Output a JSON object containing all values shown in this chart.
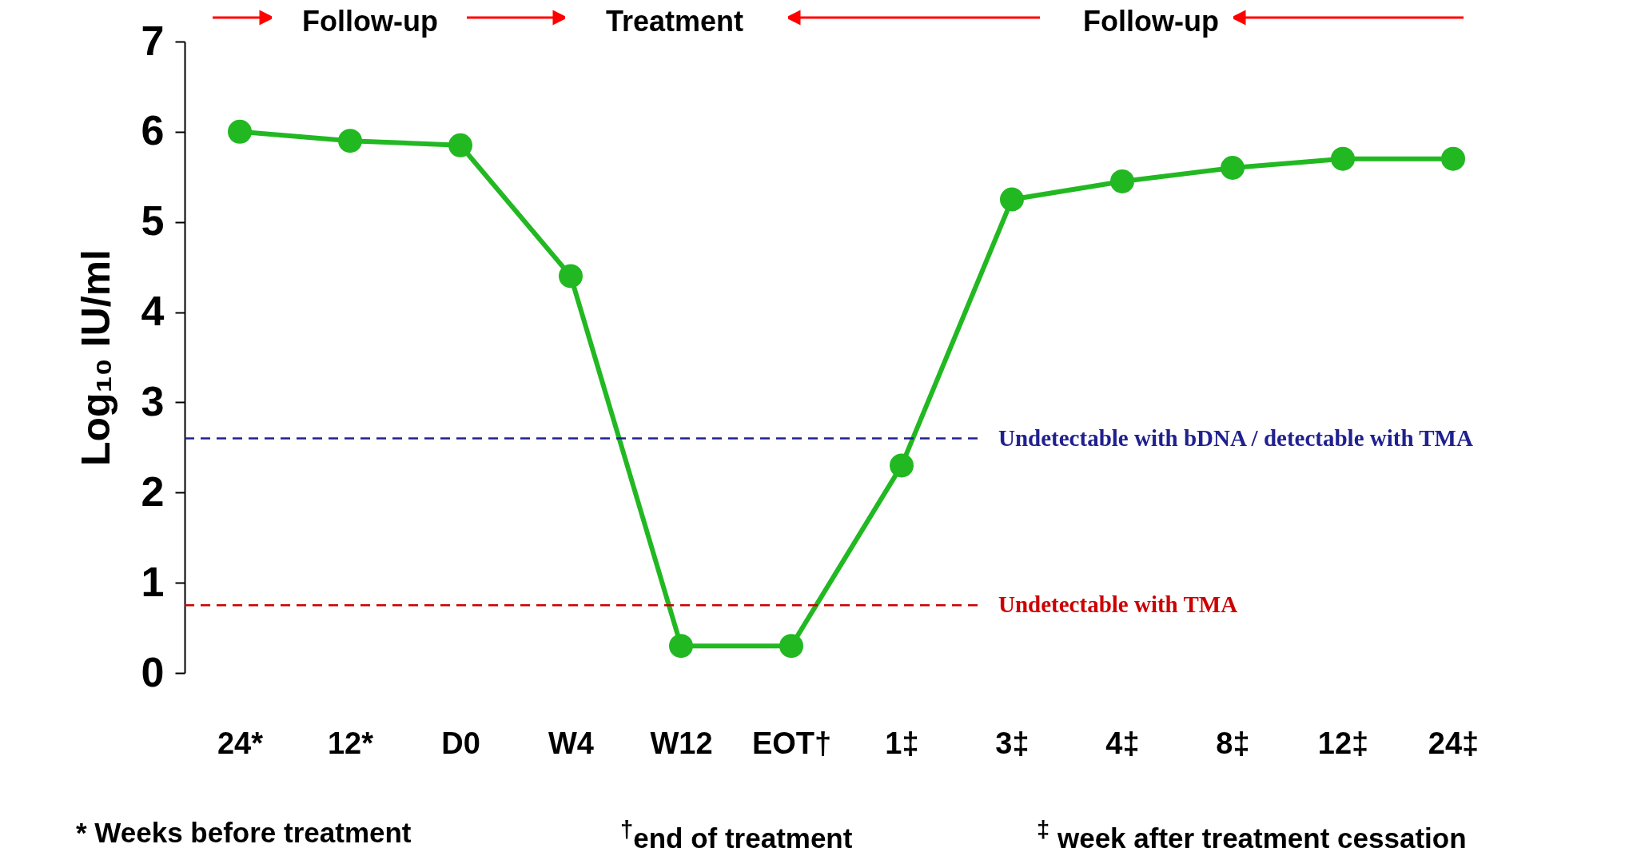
{
  "chart_data": {
    "type": "line",
    "ylabel": "Log₁₀ IU/ml",
    "categories": [
      "24*",
      "12*",
      "D0",
      "W4",
      "W12",
      "EOT†",
      "1‡",
      "3‡",
      "4‡",
      "8‡",
      "12‡",
      "24‡"
    ],
    "series": [
      {
        "color": "#22b822",
        "values": [
          6.0,
          5.9,
          5.85,
          4.4,
          0.3,
          0.3,
          2.3,
          5.25,
          5.45,
          5.6,
          5.7,
          5.7
        ]
      }
    ],
    "ylim": [
      0,
      7
    ],
    "yticks": [
      0,
      1,
      2,
      3,
      4,
      5,
      6,
      7
    ],
    "marker": "circle",
    "ref_lines": [
      {
        "axis": "y",
        "value": 2.6,
        "label": "Undetectable with bDNA / detectable with TMA",
        "color": "#202090",
        "line_style": "dashed"
      },
      {
        "axis": "y",
        "value": 0.75,
        "label": "Undetectable with TMA",
        "color": "#cc0000",
        "line_style": "dashed"
      }
    ],
    "annotations": [
      "Follow-up",
      "Treatment",
      "Follow-up",
      "* Weeks before treatment",
      "$^{†}$end of treatment",
      "$^{‡}$ week after treatment cessation"
    ]
  }
}
